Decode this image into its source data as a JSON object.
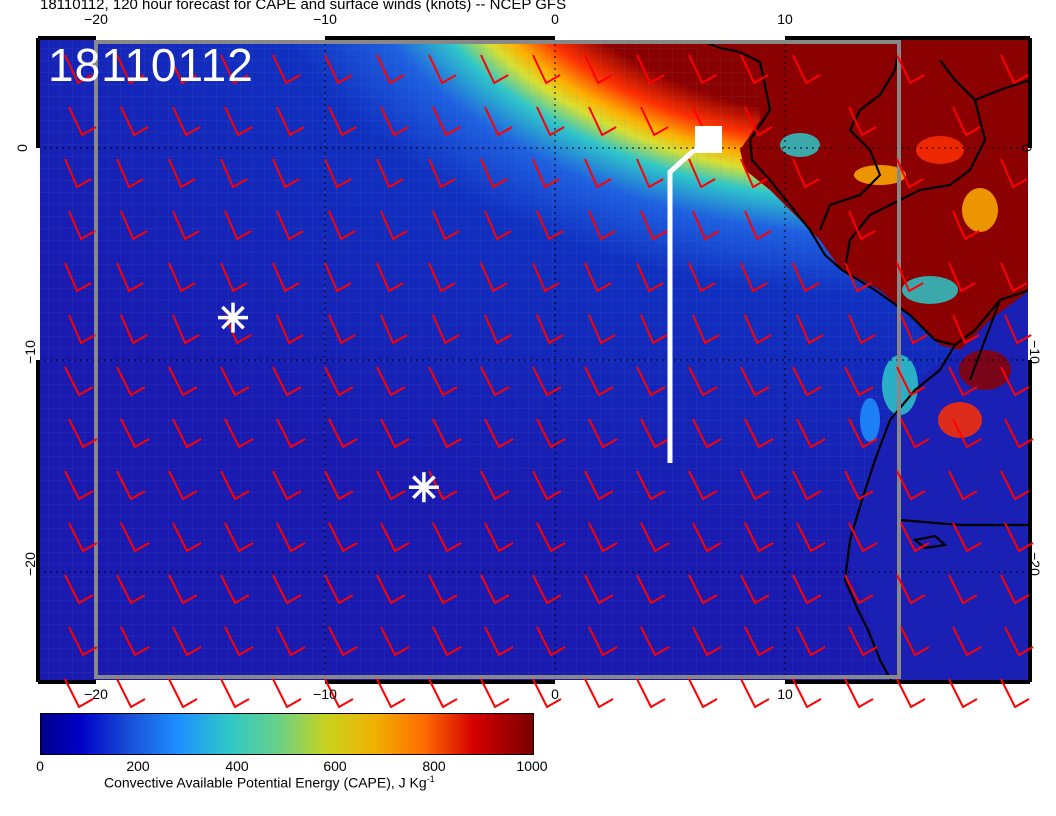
{
  "title": "18110112, 120 hour forecast for CAPE and surface winds (knots) -- NCEP GFS",
  "date_stamp": "18110112",
  "lon_labels": [
    "−20",
    "−10",
    "0",
    "10"
  ],
  "lat_labels": [
    "0",
    "−10",
    "−20"
  ],
  "colorbar": {
    "ticks": [
      "0",
      "200",
      "400",
      "600",
      "800",
      "1000"
    ],
    "label_main": "Convective Available Potential Energy (CAPE), J Kg",
    "label_sup": "-1",
    "colors": [
      "#00008b",
      "#0000c8",
      "#1e90ff",
      "#2ec7c9",
      "#c9d21e",
      "#ff6a00",
      "#d40000",
      "#7a0000"
    ]
  },
  "markers": [
    {
      "type": "asterisk",
      "lon": -14,
      "lat": -8
    },
    {
      "type": "asterisk",
      "lon": -5.7,
      "lat": -16
    }
  ],
  "track_color": "#ffffff",
  "barb_color": "#ff0000",
  "coast_color": "#000000"
}
